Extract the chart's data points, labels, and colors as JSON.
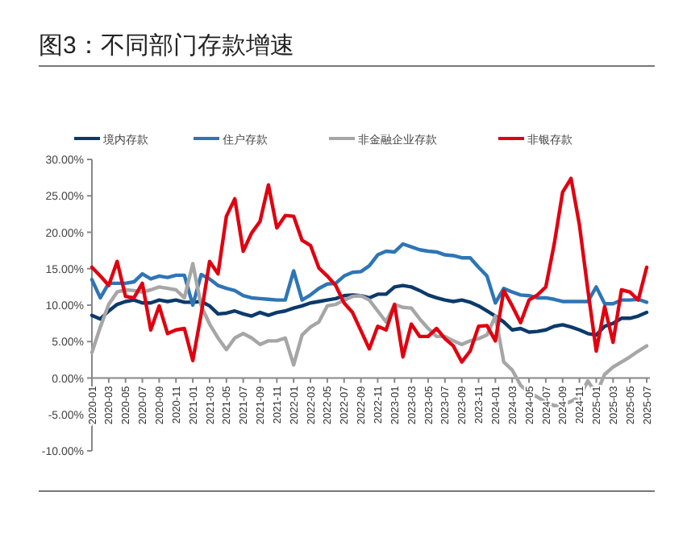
{
  "chart_data": {
    "type": "line",
    "title": "图3：不同部门存款增速",
    "categories": [
      "2020-01",
      null,
      "2020-03",
      null,
      "2020-05",
      null,
      "2020-07",
      null,
      "2020-09",
      null,
      "2020-11",
      null,
      "2021-01",
      null,
      "2021-03",
      null,
      "2021-05",
      null,
      "2021-07",
      null,
      "2021-09",
      null,
      "2021-11",
      null,
      "2022-01",
      null,
      "2022-03",
      null,
      "2022-05",
      null,
      "2022-07",
      null,
      "2022-09",
      null,
      "2022-11",
      null,
      "2023-01",
      null,
      "2023-03",
      null,
      "2023-05",
      null,
      "2023-07",
      null,
      "2023-09",
      null,
      "2023-11",
      null,
      "2024-01",
      null,
      "2024-03",
      null,
      "2024-05",
      null,
      "2024-07",
      null,
      "2024-09",
      null,
      "2024-11",
      null,
      "2025-01",
      null,
      "2025-03",
      null,
      "2025-05",
      null,
      "2025-07"
    ],
    "series": [
      {
        "name": "境内存款",
        "color": "#0b3a6b",
        "values": [
          8.6,
          8.1,
          9.2,
          10.1,
          10.5,
          10.7,
          10.3,
          10.3,
          10.7,
          10.5,
          10.7,
          10.4,
          10.4,
          10.5,
          9.9,
          8.8,
          8.9,
          9.2,
          8.8,
          8.5,
          9,
          8.6,
          9,
          9.2,
          9.6,
          9.9,
          10.3,
          10.5,
          10.7,
          10.9,
          11.3,
          11.4,
          11.3,
          11,
          11.5,
          11.5,
          12.5,
          12.7,
          12.5,
          12,
          11.4,
          11,
          10.7,
          10.5,
          10.7,
          10.4,
          9.9,
          9.2,
          8.5,
          7.7,
          6.6,
          6.8,
          6.3,
          6.4,
          6.6,
          7.1,
          7.3,
          7,
          6.6,
          6.1,
          5.9,
          7.1,
          7.5,
          8.2,
          8.2,
          8.5,
          9
        ]
      },
      {
        "name": "住户存款",
        "color": "#2e75b6",
        "values": [
          13.5,
          11,
          13,
          13,
          13,
          13.2,
          14.3,
          13.6,
          14,
          13.8,
          14.1,
          14.1,
          10,
          14.2,
          13.6,
          12.7,
          12.3,
          12,
          11.3,
          11,
          10.9,
          10.8,
          10.7,
          10.7,
          14.7,
          10.7,
          11.4,
          12.3,
          12.9,
          13,
          14,
          14.5,
          14.6,
          15.4,
          16.9,
          17.4,
          17.3,
          18.4,
          18,
          17.6,
          17.4,
          17.3,
          16.9,
          16.8,
          16.5,
          16.5,
          15.2,
          14,
          10.3,
          12.3,
          11.8,
          11.4,
          11.3,
          11,
          11,
          10.8,
          10.5,
          10.5,
          10.5,
          10.5,
          12.5,
          10.2,
          10.2,
          10.7,
          10.7,
          10.8,
          10.4
        ]
      },
      {
        "name": "非金融企业存款",
        "color": "#a6a6a6",
        "values": [
          3.5,
          7,
          10.1,
          11.8,
          12.1,
          12,
          11.8,
          12.1,
          12.5,
          12.3,
          12.1,
          11,
          15.7,
          9.9,
          7.4,
          5.5,
          3.9,
          5.5,
          6.1,
          5.5,
          4.6,
          5.1,
          5.1,
          5.5,
          1.8,
          5.9,
          7,
          7.7,
          9.9,
          10.1,
          10.7,
          11.2,
          11.3,
          10.7,
          9.2,
          7.7,
          10.1,
          9.7,
          9.6,
          8.1,
          6.8,
          5.7,
          5.7,
          5.1,
          4.6,
          5.1,
          5.4,
          5.9,
          8.5,
          2.2,
          1.1,
          -1,
          -2,
          -2.6,
          -3.3,
          -3.8,
          -3.7,
          -3.2,
          -2.6,
          -0.4,
          -2.2,
          0.5,
          1.5,
          2.2,
          2.9,
          3.7,
          4.4
        ]
      },
      {
        "name": "非银存款",
        "color": "#e00010",
        "values": [
          15.2,
          14,
          12.7,
          16,
          11.2,
          11,
          13,
          6.6,
          9.9,
          6.1,
          6.6,
          6.8,
          2.4,
          8.8,
          16,
          14.3,
          22.2,
          24.6,
          17.4,
          19.9,
          21.5,
          26.5,
          20.6,
          22.3,
          22.2,
          18.9,
          18.2,
          15.1,
          14,
          12.7,
          10.3,
          9,
          6.5,
          4,
          7.1,
          6.6,
          10.1,
          2.9,
          7.4,
          5.7,
          5.7,
          6.8,
          5.4,
          4.4,
          2.2,
          3.7,
          7.1,
          7.2,
          5.1,
          12,
          9.9,
          7.6,
          10.7,
          11.4,
          12.5,
          18.4,
          25.5,
          27.4,
          21,
          12.1,
          3.7,
          9.8,
          4.9,
          12.1,
          11.8,
          10.7,
          15.2
        ]
      }
    ],
    "ylim": [
      -10,
      30
    ],
    "yticks": [
      {
        "value": -10,
        "label": "-10.00%"
      },
      {
        "value": -5,
        "label": "-5.00%"
      },
      {
        "value": 0,
        "label": "0.00%"
      },
      {
        "value": 5,
        "label": "5.00%"
      },
      {
        "value": 10,
        "label": "10.00%"
      },
      {
        "value": 15,
        "label": "15.00%"
      },
      {
        "value": 20,
        "label": "20.00%"
      },
      {
        "value": 25,
        "label": "25.00%"
      },
      {
        "value": 30,
        "label": "30.00%"
      }
    ],
    "legend": "top",
    "grid": false,
    "marker": "none",
    "line_style": "solid"
  }
}
